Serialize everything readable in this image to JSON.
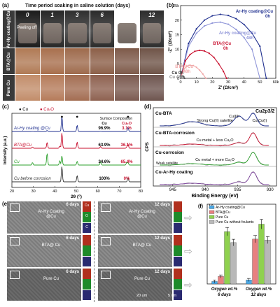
{
  "panel_a": {
    "letter": "(a)",
    "header": "Time period soaking in saline solution (days)",
    "days": [
      "0",
      "1",
      "3",
      "6",
      "9",
      "12"
    ],
    "rows": [
      "Ar-Hy coating@Cu",
      "BTA@Cu",
      "Pure Cu"
    ],
    "annotation": "Peeling off"
  },
  "panel_b": {
    "letter": "(b)",
    "xlabel": "Z' (Ω/cm²)",
    "ylabel": "-Z'' (Ω/cm²)",
    "chart_data": {
      "type": "line",
      "xlim": [
        0,
        60
      ],
      "ylim": [
        0,
        25
      ],
      "xticks": [
        "0",
        "10",
        "20",
        "30",
        "40",
        "50",
        "60k"
      ],
      "yticks": [
        "0",
        "5",
        "10",
        "15",
        "20",
        "25k"
      ],
      "series": [
        {
          "name": "Ar-Hy coating@Cu 0h",
          "color": "#1f2f8f",
          "x": [
            0,
            5,
            10,
            15,
            20,
            25,
            30,
            35,
            40,
            45,
            50,
            54
          ],
          "y": [
            0,
            12,
            17,
            20,
            21.5,
            22,
            21.6,
            20.5,
            18.5,
            15.5,
            11,
            0
          ]
        },
        {
          "name": "Ar-Hy coating@Cu 48h",
          "color": "#8f95d8",
          "x": [
            0,
            5,
            10,
            15,
            20,
            25,
            30,
            35,
            40,
            45,
            50
          ],
          "y": [
            0,
            11,
            15.5,
            18,
            19,
            19.3,
            18.6,
            16.8,
            14,
            10,
            0
          ]
        },
        {
          "name": "BTA@Cu 0h",
          "color": "#c8102e",
          "x": [
            0,
            3,
            6,
            9,
            12,
            15,
            18,
            21,
            24,
            27,
            29
          ],
          "y": [
            0,
            6,
            8.2,
            9.3,
            9.6,
            9.4,
            8.6,
            7.2,
            5,
            2.4,
            0
          ]
        },
        {
          "name": "BTA@Cu 48h",
          "color": "#f0a8a8",
          "x": [
            0,
            2,
            4,
            6,
            8,
            10,
            12,
            14,
            16
          ],
          "y": [
            0,
            3.2,
            4.2,
            4.5,
            4.4,
            3.8,
            2.8,
            1.5,
            0
          ]
        },
        {
          "name": "Cu 0h",
          "color": "#333333",
          "x": [
            0,
            0.5,
            1,
            1.5,
            2,
            2.5
          ],
          "y": [
            0,
            0.6,
            0.8,
            0.8,
            0.5,
            0
          ]
        },
        {
          "name": "Cu 48h",
          "color": "#888888",
          "x": [
            0,
            0.4,
            0.8,
            1.2,
            1.6,
            2
          ],
          "y": [
            0,
            0.5,
            0.7,
            0.7,
            0.4,
            0
          ]
        }
      ],
      "labels": [
        {
          "text": "Ar-Hy coating@Cu",
          "sub": "0h",
          "color": "#1f2f8f"
        },
        {
          "text": "Ar-Hy coating@Cu",
          "sub": "48h",
          "color": "#8f95d8"
        },
        {
          "text": "BTA@Cu",
          "sub": "0h",
          "color": "#c8102e"
        },
        {
          "text": "BTA@Cu",
          "sub": "48h",
          "color": "#f0a8a8"
        },
        {
          "text": "Cu 0h",
          "color": "#333333"
        },
        {
          "text": "Cu 48h",
          "color": "#888888"
        }
      ]
    }
  },
  "panel_c": {
    "letter": "(c)",
    "legend_cu": "Cu",
    "legend_cu2o": "Cu₂O",
    "surface_title": "Surface Composition",
    "col_cu": "Cu",
    "col_cu2o": "Cu₂O",
    "xlabel": "2θ (°)",
    "ylabel": "Intensity (a.u.)",
    "chart_data": {
      "type": "line",
      "xlim": [
        20,
        80
      ],
      "xticks": [
        "20",
        "30",
        "40",
        "50",
        "60",
        "70",
        "80"
      ],
      "series": [
        {
          "name": "Ar-Hy coating @Cu",
          "color": "#1f2f8f",
          "cu": "96.9%",
          "cu2o": "3.1%"
        },
        {
          "name": "BTA@Cu",
          "color": "#c8102e",
          "cu": "63.9%",
          "cu2o": "36.1%"
        },
        {
          "name": "Cu",
          "color": "#2ca02c",
          "cu": "34.6%",
          "cu2o": "65.4%"
        },
        {
          "name": "Cu before corrosion",
          "color": "#333333",
          "cu": "100%",
          "cu2o": "0%"
        }
      ],
      "cu_peaks": [
        43.3,
        50.4,
        74.1
      ],
      "cu2o_peaks": [
        29.6,
        36.4,
        42.3,
        61.3,
        73.5
      ]
    }
  },
  "panel_d": {
    "letter": "(d)",
    "xlabel": "Binding Energy (eV)",
    "ylabel": "CPS",
    "title": "Cu2p3/2",
    "xticks": [
      "945",
      "940",
      "935",
      "930"
    ],
    "rows": [
      {
        "name": "Cu-BTA",
        "note": "Strong Cu(II) satellite",
        "tags": [
          "Cu(II)",
          "Cu,Cu(I)"
        ]
      },
      {
        "name": "Cu-BTA-corrosion",
        "note": "Cu metal + less Cu₂O"
      },
      {
        "name": "Cu-corrosion",
        "note": "Cu metal + more Cu₂O",
        "note2": "Weak satellite"
      },
      {
        "name": "Cu-Ar-Hy coating",
        "note": ""
      }
    ]
  },
  "panel_e": {
    "letter": "(e)",
    "days_6": "6 days",
    "days_12": "12 days",
    "labels": [
      "Ar-Hy Coating @Cu",
      "BTA@ Cu",
      "Pure Cu"
    ],
    "eds": [
      "Cu",
      "O",
      "C"
    ],
    "scale": "20 um",
    "scale2": "5 um"
  },
  "panel_f": {
    "letter": "(f)",
    "ytop": "16",
    "xlabel_1": "Oxygen wt.% 6 days",
    "xlabel_2": "Oxygen wt.% 12 days",
    "chart_data": {
      "type": "bar",
      "categories": [
        "Oxygen wt.% 6 days",
        "Oxygen wt.% 12 days"
      ],
      "ylim": [
        0,
        16
      ],
      "series": [
        {
          "name": "Ar-Hy coating@Cu",
          "color": "#4aa8e6",
          "values": [
            0.5,
            0.8
          ]
        },
        {
          "name": "BTA@Cu",
          "color": "#e88080",
          "values": [
            1.5,
            9.0
          ]
        },
        {
          "name": "Pure Cu",
          "color": "#8fd14f",
          "values": [
            10.5,
            12.0
          ]
        },
        {
          "name": "Pure Cu without foulants",
          "color": "#b8b8b8",
          "values": [
            8.3,
            8.8
          ]
        }
      ]
    }
  }
}
